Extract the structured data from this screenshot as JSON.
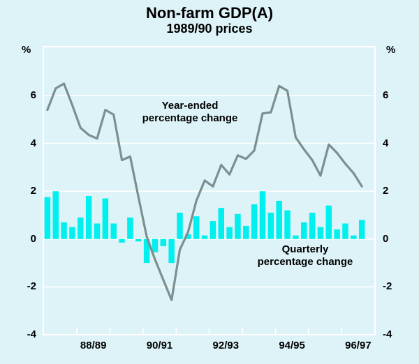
{
  "header": {
    "title": "Non-farm GDP(A)",
    "subtitle": "1989/90 prices",
    "unit_left": "%",
    "unit_right": "%"
  },
  "annotations": {
    "line_series_label_1": "Year-ended",
    "line_series_label_2": "percentage change",
    "bar_series_label_1": "Quarterly",
    "bar_series_label_2": "percentage change"
  },
  "colors": {
    "background": "#ddf3f7",
    "bar": "#00f0f0",
    "line": "#7d8e8e",
    "grid": "#ffffff",
    "frame": "#ffffff",
    "text": "#000000"
  },
  "chart_data": {
    "type": "combo-bar-line",
    "title": "Non-farm GDP(A)",
    "subtitle": "1989/90 prices",
    "ylabel_left": "%",
    "ylabel_right": "%",
    "ylim": [
      -4,
      8.04
    ],
    "y_tick_values": [
      6,
      4,
      2,
      0,
      -2,
      -4
    ],
    "y_tick_labels": [
      "6",
      "4",
      "2",
      "0",
      "-2",
      "-4"
    ],
    "gridline_values": [
      6,
      4,
      2,
      0,
      -2
    ],
    "grid": true,
    "x_axis_year_ticks": [
      "Jul-88",
      "Jul-89",
      "Jul-90",
      "Jul-91",
      "Jul-92",
      "Jul-93",
      "Jul-94",
      "Jul-95",
      "Jul-96"
    ],
    "x_tick_labels": [
      "88/89",
      "90/91",
      "92/93",
      "94/95",
      "96/97"
    ],
    "frequency": "quarterly",
    "start_period": "Sep-1987",
    "end_period": "Mar-1997",
    "series": [
      {
        "name": "Year-ended percentage change",
        "type": "line",
        "values": [
          5.4,
          6.3,
          6.5,
          5.6,
          4.65,
          4.35,
          4.2,
          5.4,
          5.2,
          3.3,
          3.45,
          1.75,
          0.1,
          -0.85,
          -1.7,
          -2.55,
          -0.45,
          0.3,
          1.6,
          2.45,
          2.2,
          3.1,
          2.7,
          3.5,
          3.35,
          3.7,
          5.25,
          5.3,
          6.4,
          6.2,
          4.25,
          3.75,
          3.3,
          2.65,
          3.95,
          3.6,
          3.15,
          2.75,
          2.2
        ]
      },
      {
        "name": "Quarterly percentage change",
        "type": "bar",
        "values": [
          1.75,
          2.0,
          0.7,
          0.5,
          0.9,
          1.8,
          0.65,
          1.7,
          0.65,
          -0.15,
          0.9,
          -0.1,
          -1.0,
          -0.55,
          -0.3,
          -1.0,
          1.1,
          0.2,
          0.95,
          0.15,
          0.75,
          1.3,
          0.5,
          1.05,
          0.55,
          1.45,
          2.0,
          1.1,
          1.6,
          1.2,
          0.15,
          0.7,
          1.1,
          0.5,
          1.4,
          0.4,
          0.65,
          0.15,
          0.8
        ]
      }
    ],
    "legend_position": "annotations-inside-plot"
  }
}
